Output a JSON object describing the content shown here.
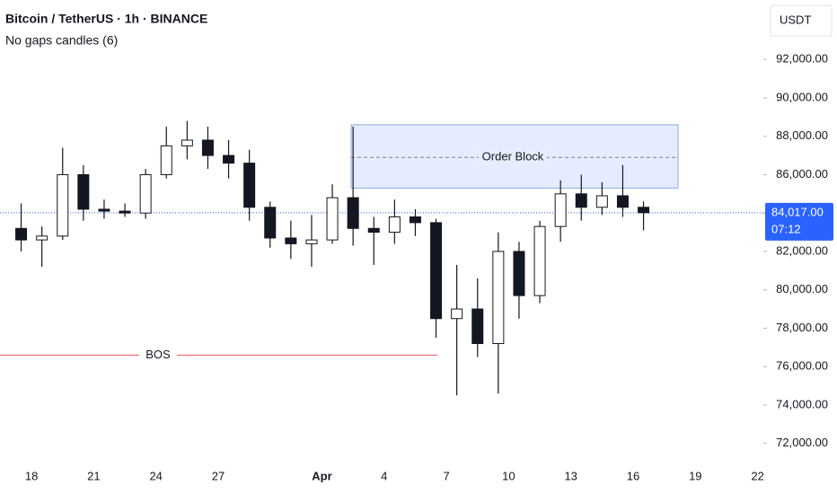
{
  "chart_data": {
    "type": "candlestick",
    "title": "Bitcoin / TetherUS · 1h · BINANCE",
    "subtitle": "No gaps candles (6)",
    "currency": "USDT",
    "color": "#131722",
    "categories": [
      null,
      "18",
      null,
      null,
      "21",
      null,
      null,
      "24",
      null,
      null,
      "27",
      null,
      null,
      null,
      null,
      "Apr",
      null,
      null,
      "4",
      null,
      null,
      "7",
      null,
      null,
      "10",
      null,
      null,
      "13",
      null,
      null,
      "16",
      null,
      null,
      "19",
      null,
      null,
      "22"
    ],
    "open": [
      83200,
      82600,
      82800,
      86000,
      84200,
      84100,
      84000,
      86000,
      87500,
      87800,
      87000,
      86600,
      84300,
      82700,
      82400,
      82600,
      84800,
      83200,
      83000,
      83800,
      83500,
      78500,
      79000,
      77200,
      82000,
      79700,
      83300,
      85000,
      84300,
      84900,
      84300,
      null,
      null,
      null,
      null,
      null,
      null
    ],
    "high": [
      84500,
      83300,
      87400,
      86500,
      84700,
      84500,
      86300,
      88500,
      88800,
      88500,
      87800,
      87300,
      84600,
      83600,
      83900,
      85500,
      88500,
      83800,
      84700,
      84200,
      83700,
      81300,
      80600,
      83000,
      82500,
      83600,
      85700,
      86000,
      85600,
      86500,
      84600,
      null,
      null,
      null,
      null,
      null,
      null
    ],
    "low": [
      82000,
      81200,
      82600,
      83600,
      83700,
      83800,
      83700,
      85800,
      86800,
      86300,
      85800,
      83600,
      82200,
      81600,
      81200,
      82400,
      82300,
      81300,
      82400,
      82800,
      77500,
      74500,
      76500,
      74600,
      78500,
      79300,
      82500,
      83600,
      83900,
      83800,
      83100,
      null,
      null,
      null,
      null,
      null,
      null
    ],
    "close": [
      82600,
      82800,
      86000,
      84200,
      84100,
      84000,
      86000,
      87500,
      87800,
      87000,
      86600,
      84300,
      82700,
      82400,
      82600,
      84800,
      83200,
      83000,
      83800,
      83500,
      78500,
      79000,
      77200,
      82000,
      79700,
      83300,
      85000,
      84300,
      84900,
      84300,
      84017,
      null,
      null,
      null,
      null,
      null,
      null
    ],
    "ylim": [
      71000,
      95100
    ],
    "yticks": [
      {
        "value": 72000,
        "label": "72,000.00"
      },
      {
        "value": 74000,
        "label": "74,000.00"
      },
      {
        "value": 76000,
        "label": "76,000.00"
      },
      {
        "value": 78000,
        "label": "78,000.00"
      },
      {
        "value": 80000,
        "label": "80,000.00"
      },
      {
        "value": 82000,
        "label": "82,000.00"
      },
      {
        "value": 84000,
        "label": "84,000.00"
      },
      {
        "value": 86000,
        "label": "86,000.00"
      },
      {
        "value": 88000,
        "label": "88,000.00"
      },
      {
        "value": 90000,
        "label": "90,000.00"
      },
      {
        "value": 92000,
        "label": "92,000.00"
      }
    ],
    "last_price": {
      "value": 84017,
      "label": "84,017.00",
      "countdown": "07:12"
    },
    "order_block": {
      "label": "Order Block",
      "top": 88600,
      "bottom": 85300,
      "mid": 86900
    },
    "bos": {
      "label": "BOS",
      "level": 76600
    }
  }
}
